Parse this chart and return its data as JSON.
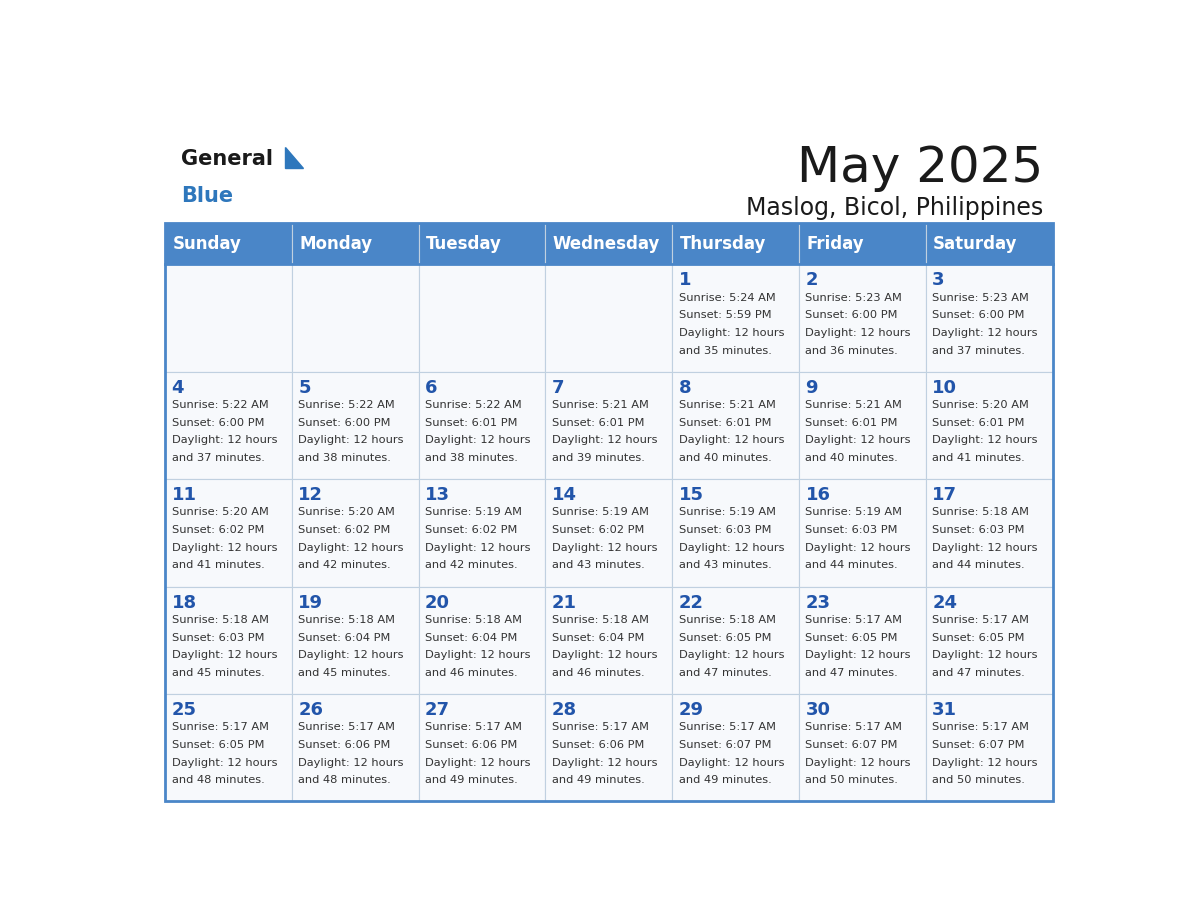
{
  "title": "May 2025",
  "subtitle": "Maslog, Bicol, Philippines",
  "header_bg": "#4a86c8",
  "header_text": "#ffffff",
  "cell_bg": "#f7f9fc",
  "day_number_color": "#2255aa",
  "text_color": "#333333",
  "days_of_week": [
    "Sunday",
    "Monday",
    "Tuesday",
    "Wednesday",
    "Thursday",
    "Friday",
    "Saturday"
  ],
  "weeks": [
    [
      {
        "day": null,
        "sunrise": null,
        "sunset": null,
        "daylight": null
      },
      {
        "day": null,
        "sunrise": null,
        "sunset": null,
        "daylight": null
      },
      {
        "day": null,
        "sunrise": null,
        "sunset": null,
        "daylight": null
      },
      {
        "day": null,
        "sunrise": null,
        "sunset": null,
        "daylight": null
      },
      {
        "day": 1,
        "sunrise": "5:24 AM",
        "sunset": "5:59 PM",
        "daylight": "12 hours and 35 minutes"
      },
      {
        "day": 2,
        "sunrise": "5:23 AM",
        "sunset": "6:00 PM",
        "daylight": "12 hours and 36 minutes"
      },
      {
        "day": 3,
        "sunrise": "5:23 AM",
        "sunset": "6:00 PM",
        "daylight": "12 hours and 37 minutes"
      }
    ],
    [
      {
        "day": 4,
        "sunrise": "5:22 AM",
        "sunset": "6:00 PM",
        "daylight": "12 hours and 37 minutes"
      },
      {
        "day": 5,
        "sunrise": "5:22 AM",
        "sunset": "6:00 PM",
        "daylight": "12 hours and 38 minutes"
      },
      {
        "day": 6,
        "sunrise": "5:22 AM",
        "sunset": "6:01 PM",
        "daylight": "12 hours and 38 minutes"
      },
      {
        "day": 7,
        "sunrise": "5:21 AM",
        "sunset": "6:01 PM",
        "daylight": "12 hours and 39 minutes"
      },
      {
        "day": 8,
        "sunrise": "5:21 AM",
        "sunset": "6:01 PM",
        "daylight": "12 hours and 40 minutes"
      },
      {
        "day": 9,
        "sunrise": "5:21 AM",
        "sunset": "6:01 PM",
        "daylight": "12 hours and 40 minutes"
      },
      {
        "day": 10,
        "sunrise": "5:20 AM",
        "sunset": "6:01 PM",
        "daylight": "12 hours and 41 minutes"
      }
    ],
    [
      {
        "day": 11,
        "sunrise": "5:20 AM",
        "sunset": "6:02 PM",
        "daylight": "12 hours and 41 minutes"
      },
      {
        "day": 12,
        "sunrise": "5:20 AM",
        "sunset": "6:02 PM",
        "daylight": "12 hours and 42 minutes"
      },
      {
        "day": 13,
        "sunrise": "5:19 AM",
        "sunset": "6:02 PM",
        "daylight": "12 hours and 42 minutes"
      },
      {
        "day": 14,
        "sunrise": "5:19 AM",
        "sunset": "6:02 PM",
        "daylight": "12 hours and 43 minutes"
      },
      {
        "day": 15,
        "sunrise": "5:19 AM",
        "sunset": "6:03 PM",
        "daylight": "12 hours and 43 minutes"
      },
      {
        "day": 16,
        "sunrise": "5:19 AM",
        "sunset": "6:03 PM",
        "daylight": "12 hours and 44 minutes"
      },
      {
        "day": 17,
        "sunrise": "5:18 AM",
        "sunset": "6:03 PM",
        "daylight": "12 hours and 44 minutes"
      }
    ],
    [
      {
        "day": 18,
        "sunrise": "5:18 AM",
        "sunset": "6:03 PM",
        "daylight": "12 hours and 45 minutes"
      },
      {
        "day": 19,
        "sunrise": "5:18 AM",
        "sunset": "6:04 PM",
        "daylight": "12 hours and 45 minutes"
      },
      {
        "day": 20,
        "sunrise": "5:18 AM",
        "sunset": "6:04 PM",
        "daylight": "12 hours and 46 minutes"
      },
      {
        "day": 21,
        "sunrise": "5:18 AM",
        "sunset": "6:04 PM",
        "daylight": "12 hours and 46 minutes"
      },
      {
        "day": 22,
        "sunrise": "5:18 AM",
        "sunset": "6:05 PM",
        "daylight": "12 hours and 47 minutes"
      },
      {
        "day": 23,
        "sunrise": "5:17 AM",
        "sunset": "6:05 PM",
        "daylight": "12 hours and 47 minutes"
      },
      {
        "day": 24,
        "sunrise": "5:17 AM",
        "sunset": "6:05 PM",
        "daylight": "12 hours and 47 minutes"
      }
    ],
    [
      {
        "day": 25,
        "sunrise": "5:17 AM",
        "sunset": "6:05 PM",
        "daylight": "12 hours and 48 minutes"
      },
      {
        "day": 26,
        "sunrise": "5:17 AM",
        "sunset": "6:06 PM",
        "daylight": "12 hours and 48 minutes"
      },
      {
        "day": 27,
        "sunrise": "5:17 AM",
        "sunset": "6:06 PM",
        "daylight": "12 hours and 49 minutes"
      },
      {
        "day": 28,
        "sunrise": "5:17 AM",
        "sunset": "6:06 PM",
        "daylight": "12 hours and 49 minutes"
      },
      {
        "day": 29,
        "sunrise": "5:17 AM",
        "sunset": "6:07 PM",
        "daylight": "12 hours and 49 minutes"
      },
      {
        "day": 30,
        "sunrise": "5:17 AM",
        "sunset": "6:07 PM",
        "daylight": "12 hours and 50 minutes"
      },
      {
        "day": 31,
        "sunrise": "5:17 AM",
        "sunset": "6:07 PM",
        "daylight": "12 hours and 50 minutes"
      }
    ]
  ]
}
